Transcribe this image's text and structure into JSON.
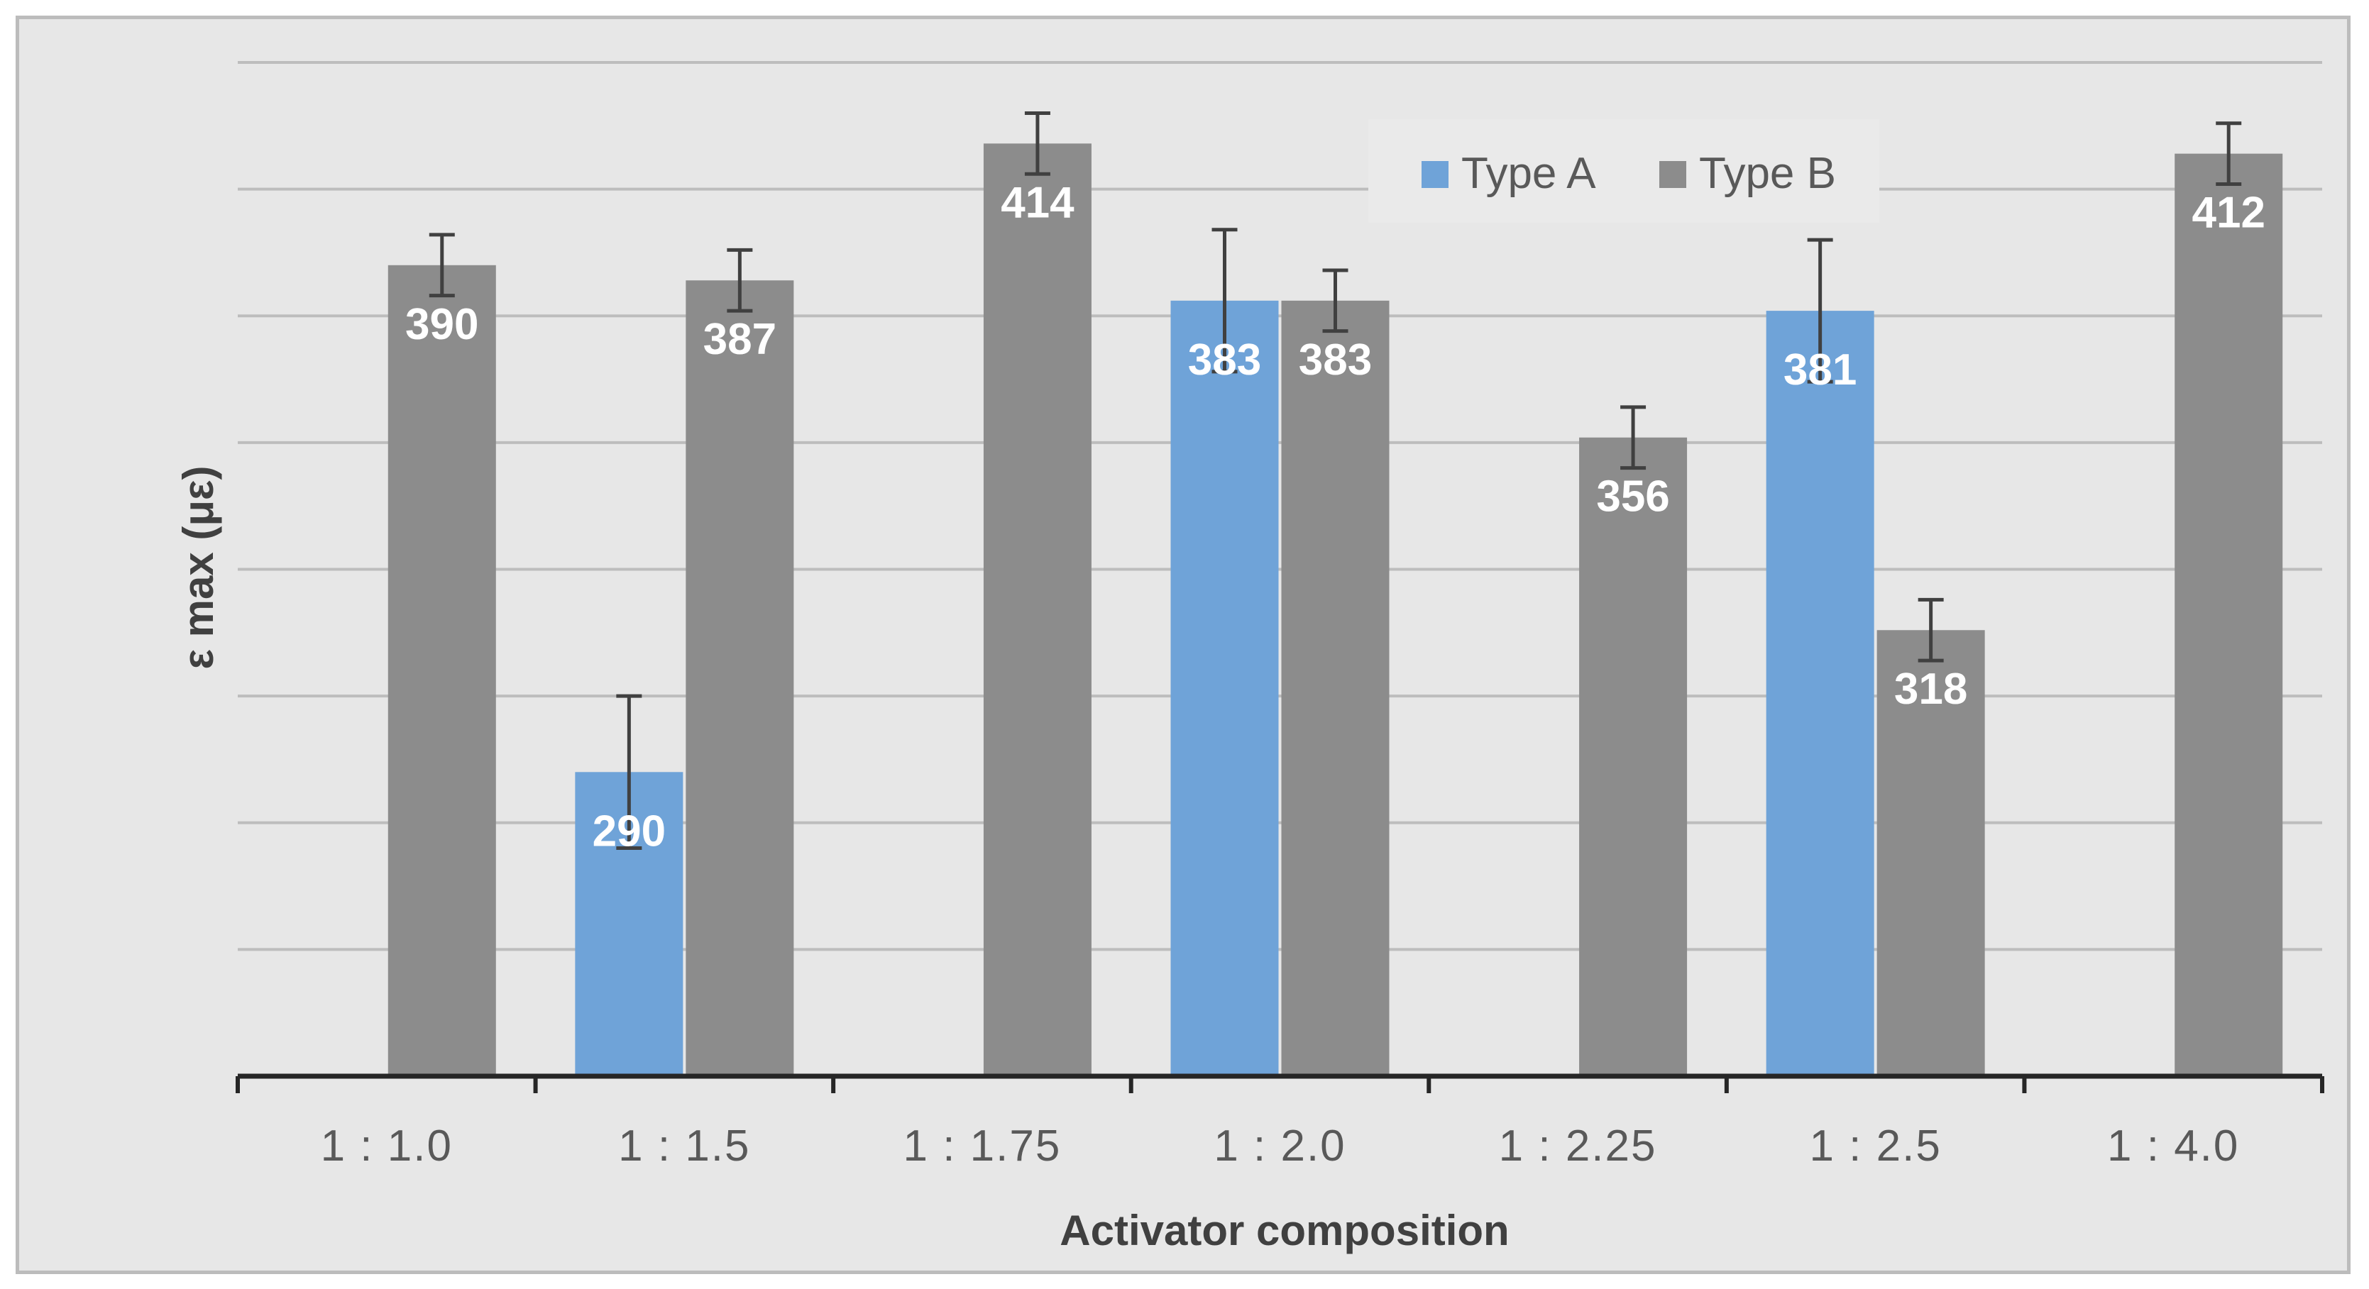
{
  "chart_data": {
    "type": "bar",
    "title": "",
    "xlabel": "Activator composition",
    "ylabel": "ε max (με)",
    "categories": [
      "1 : 1.0",
      "1 : 1.5",
      "1 : 1.75",
      "1 : 2.0",
      "1 : 2.25",
      "1 : 2.5",
      "1 : 4.0"
    ],
    "ylim": [
      230,
      430
    ],
    "grid": true,
    "legend_position": "top-right",
    "series": [
      {
        "name": "Type A",
        "color": "#6fa3d8",
        "values": [
          null,
          290,
          null,
          383,
          null,
          381,
          null
        ],
        "errors": [
          null,
          15,
          null,
          14,
          null,
          14,
          null
        ]
      },
      {
        "name": "Type B",
        "color": "#8c8c8c",
        "values": [
          390,
          387,
          414,
          383,
          356,
          318,
          412
        ],
        "errors": [
          6,
          6,
          6,
          6,
          6,
          6,
          6
        ]
      }
    ]
  }
}
